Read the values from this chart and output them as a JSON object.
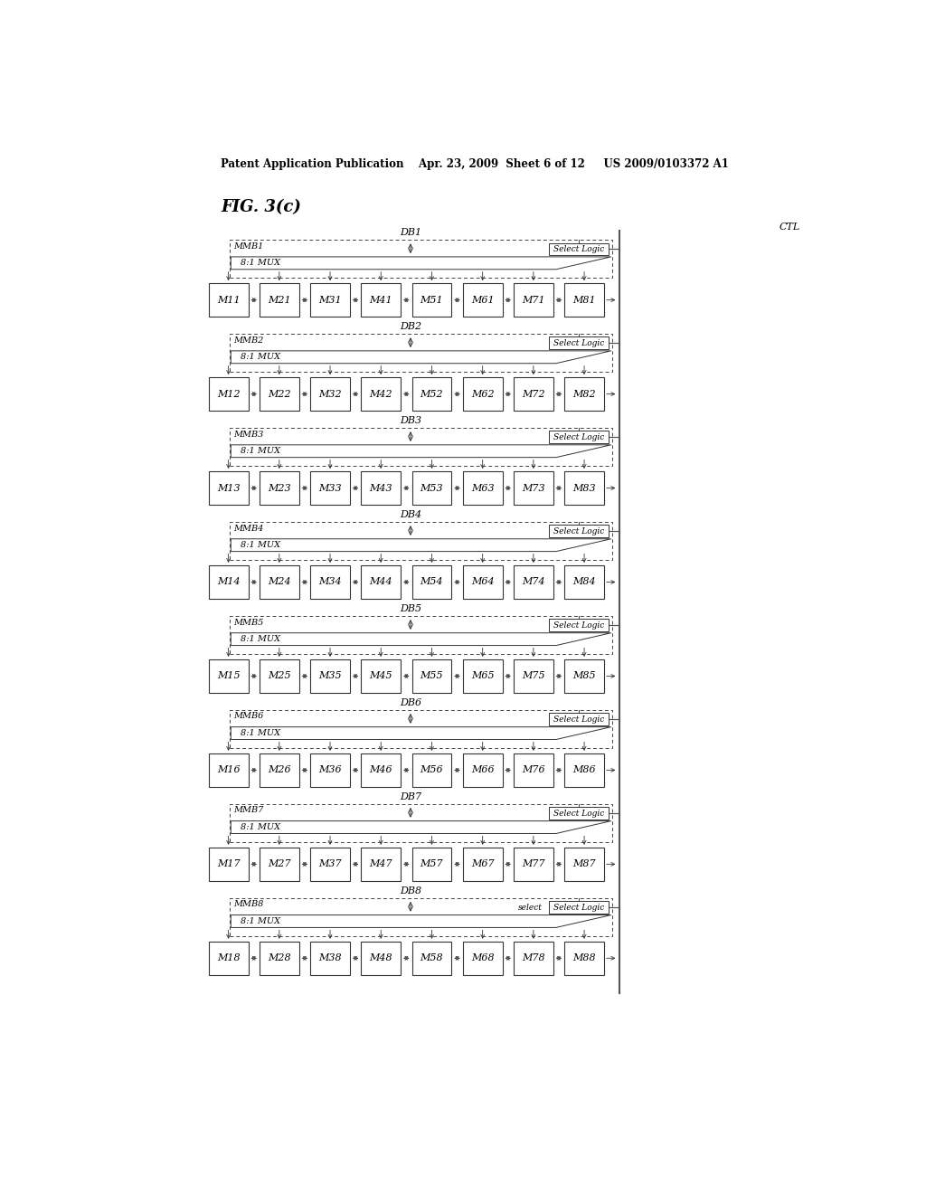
{
  "title_header": "Patent Application Publication    Apr. 23, 2009  Sheet 6 of 12     US 2009/0103372 A1",
  "fig_label": "FIG. 3(c)",
  "ctl_label": "CTL",
  "bg_color": "#ffffff",
  "num_rows": 8,
  "row_labels": [
    "MMB1",
    "MMB2",
    "MMB3",
    "MMB4",
    "MMB5",
    "MMB6",
    "MMB7",
    "MMB8"
  ],
  "db_labels": [
    "DB1",
    "DB2",
    "DB3",
    "DB4",
    "DB5",
    "DB6",
    "DB7",
    "DB8"
  ],
  "mux_label": "8:1 MUX",
  "select_logic_label": "Select Logic",
  "memory_cells": [
    [
      "M11",
      "M21",
      "M31",
      "M41",
      "M51",
      "M61",
      "M71",
      "M81"
    ],
    [
      "M12",
      "M22",
      "M32",
      "M42",
      "M52",
      "M62",
      "M72",
      "M82"
    ],
    [
      "M13",
      "M23",
      "M33",
      "M43",
      "M53",
      "M63",
      "M73",
      "M83"
    ],
    [
      "M14",
      "M24",
      "M34",
      "M44",
      "M54",
      "M64",
      "M74",
      "M84"
    ],
    [
      "M15",
      "M25",
      "M35",
      "M45",
      "M55",
      "M65",
      "M75",
      "M85"
    ],
    [
      "M16",
      "M26",
      "M36",
      "M46",
      "M56",
      "M66",
      "M76",
      "M86"
    ],
    [
      "M17",
      "M27",
      "M37",
      "M47",
      "M57",
      "M67",
      "M77",
      "M87"
    ],
    [
      "M18",
      "M28",
      "M38",
      "M48",
      "M58",
      "M68",
      "M78",
      "M88"
    ]
  ],
  "last_row_select_label": "select"
}
